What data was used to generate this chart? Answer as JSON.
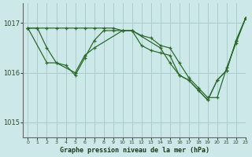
{
  "title": "Graphe pression niveau de la mer (hPa)",
  "background_color": "#cce8e8",
  "grid_color": "#aacccc",
  "line_color": "#2d6b2d",
  "xlim": [
    -0.5,
    23
  ],
  "ylim": [
    1014.7,
    1017.4
  ],
  "yticks": [
    1015,
    1016,
    1017
  ],
  "xticks": [
    0,
    1,
    2,
    3,
    4,
    5,
    6,
    7,
    8,
    9,
    10,
    11,
    12,
    13,
    14,
    15,
    16,
    17,
    18,
    19,
    20,
    21,
    22,
    23
  ],
  "series": [
    {
      "x": [
        0,
        1,
        2,
        3,
        4,
        5,
        6,
        7,
        8,
        9,
        10,
        11,
        12,
        13,
        14,
        15,
        16,
        17,
        18,
        19,
        20,
        21,
        22,
        23
      ],
      "y": [
        1016.9,
        1016.9,
        1016.9,
        1016.9,
        1016.9,
        1016.9,
        1016.9,
        1016.9,
        1016.9,
        1016.9,
        1016.85,
        1016.85,
        1016.75,
        1016.7,
        1016.55,
        1016.5,
        1016.2,
        1015.9,
        1015.7,
        1015.5,
        1015.5,
        1016.1,
        1016.6,
        1017.1
      ]
    },
    {
      "x": [
        0,
        1,
        2,
        3,
        4,
        5,
        6,
        7,
        8,
        9,
        10,
        11,
        12,
        13,
        14,
        15,
        16,
        17,
        18,
        19,
        20,
        21,
        22,
        23
      ],
      "y": [
        1016.9,
        1016.9,
        1016.5,
        1016.2,
        1016.15,
        1015.95,
        1016.3,
        1016.65,
        1016.85,
        1016.85,
        1016.85,
        1016.85,
        1016.55,
        1016.45,
        1016.4,
        1016.35,
        1015.95,
        1015.85,
        1015.65,
        1015.45,
        1015.85,
        1016.05,
        1016.65,
        1017.1
      ]
    },
    {
      "x": [
        0,
        2,
        3,
        5,
        6,
        7,
        10,
        11,
        14,
        15,
        16,
        17,
        18,
        19,
        20,
        21,
        22,
        23
      ],
      "y": [
        1016.9,
        1016.2,
        1016.2,
        1016.0,
        1016.35,
        1016.5,
        1016.85,
        1016.85,
        1016.5,
        1016.2,
        1015.95,
        1015.85,
        1015.65,
        1015.45,
        1015.85,
        1016.05,
        1016.65,
        1017.1
      ]
    }
  ]
}
